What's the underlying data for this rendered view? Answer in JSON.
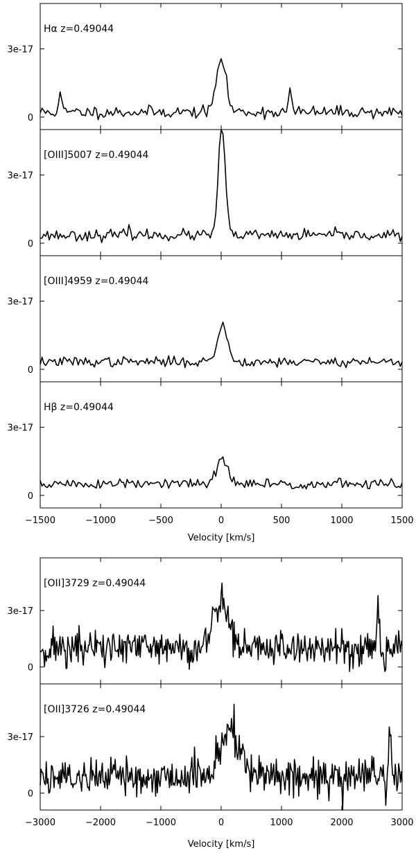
{
  "chart_data": [
    {
      "type": "line",
      "xlabel": "Velocity [km/s]",
      "xlim": [
        -1500,
        1500
      ],
      "x_ticks": [
        -1500,
        -1000,
        -500,
        0,
        500,
        1000,
        1500
      ],
      "x_tick_labels": [
        "−1500",
        "−1000",
        "−500",
        "0",
        "500",
        "1000",
        "1500"
      ],
      "panels": [
        {
          "label": "Hα z=0.49044",
          "ylim": [
            -5.5e-18,
            5e-17
          ],
          "y_ticks": [
            0,
            3e-17
          ],
          "y_tick_labels": [
            "0",
            "3e-17"
          ],
          "continuum": 2.2e-18,
          "noise": 2.2e-18,
          "peak_center": 0,
          "peak_amp": 2.35e-17,
          "peak_sigma": 40,
          "spikes": [
            [
              -1335,
              8e-18
            ],
            [
              570,
              1e-17
            ]
          ],
          "seed": 11
        },
        {
          "label": "[OIII]5007 z=0.49044",
          "ylim": [
            -5.5e-18,
            5e-17
          ],
          "y_ticks": [
            0,
            3e-17
          ],
          "y_tick_labels": [
            "0",
            "3e-17"
          ],
          "continuum": 3.5e-18,
          "noise": 2e-18,
          "peak_center": 5,
          "peak_amp": 4.85e-17,
          "peak_sigma": 28,
          "spikes": [
            [
              -755,
              3.5e-18
            ]
          ],
          "seed": 23
        },
        {
          "label": "[OIII]4959 z=0.49044",
          "ylim": [
            -5.5e-18,
            5e-17
          ],
          "y_ticks": [
            0,
            3e-17
          ],
          "y_tick_labels": [
            "0",
            "3e-17"
          ],
          "continuum": 3.3e-18,
          "noise": 1.8e-18,
          "peak_center": 10,
          "peak_amp": 1.65e-17,
          "peak_sigma": 40,
          "spikes": [],
          "seed": 37
        },
        {
          "label": "Hβ z=0.49044",
          "ylim": [
            -5.5e-18,
            5e-17
          ],
          "y_ticks": [
            0,
            3e-17
          ],
          "y_tick_labels": [
            "0",
            "3e-17"
          ],
          "continuum": 5e-18,
          "noise": 2e-18,
          "peak_center": 5,
          "peak_amp": 1.1e-17,
          "peak_sigma": 45,
          "spikes": [],
          "seed": 51
        }
      ]
    },
    {
      "type": "line",
      "xlabel": "Velocity [km/s]",
      "xlim": [
        -3000,
        3000
      ],
      "x_ticks": [
        -3000,
        -2000,
        -1000,
        0,
        1000,
        2000,
        3000
      ],
      "x_tick_labels": [
        "−3000",
        "−2000",
        "−1000",
        "0",
        "1000",
        "2000",
        "3000"
      ],
      "panels": [
        {
          "label": "[OII]3729 z=0.49044",
          "ylim": [
            -9e-18,
            5.8e-17
          ],
          "y_ticks": [
            0,
            3e-17
          ],
          "y_tick_labels": [
            "0",
            "3e-17"
          ],
          "continuum": 1e-17,
          "noise": 8.5e-18,
          "peak_center": 0,
          "peak_amp": 2.7e-17,
          "peak_sigma": 120,
          "spikes": [
            [
              2600,
              2.6e-17
            ]
          ],
          "seed": 71
        },
        {
          "label": "[OII]3726 z=0.49044",
          "ylim": [
            -9e-18,
            5.8e-17
          ],
          "y_ticks": [
            0,
            3e-17
          ],
          "y_tick_labels": [
            "0",
            "3e-17"
          ],
          "continuum": 9e-18,
          "noise": 8.5e-18,
          "peak_center": 150,
          "peak_amp": 2.6e-17,
          "peak_sigma": 150,
          "spikes": [
            [
              2800,
              2.4e-17
            ]
          ],
          "seed": 89
        }
      ]
    }
  ]
}
